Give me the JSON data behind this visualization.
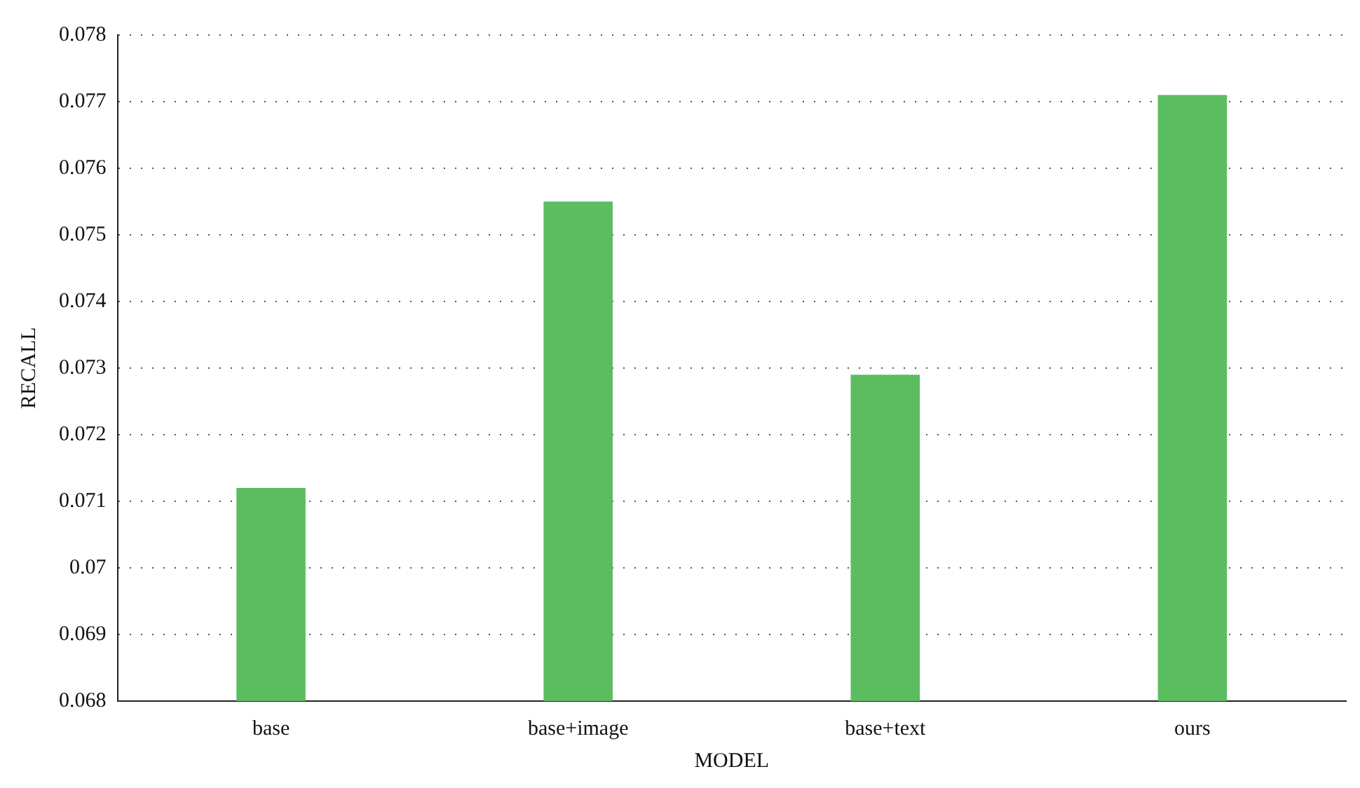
{
  "chart_data": {
    "type": "bar",
    "xlabel": "MODEL",
    "ylabel": "RECALL",
    "categories": [
      "base",
      "base+image",
      "base+text",
      "ours"
    ],
    "values": [
      0.0712,
      0.0755,
      0.0729,
      0.0771
    ],
    "color": "#5bbd60",
    "ylim": [
      0.068,
      0.078
    ],
    "yticks": [
      0.068,
      0.069,
      0.07,
      0.071,
      0.072,
      0.073,
      0.074,
      0.075,
      0.076,
      0.077,
      0.078
    ],
    "grid": "y"
  }
}
